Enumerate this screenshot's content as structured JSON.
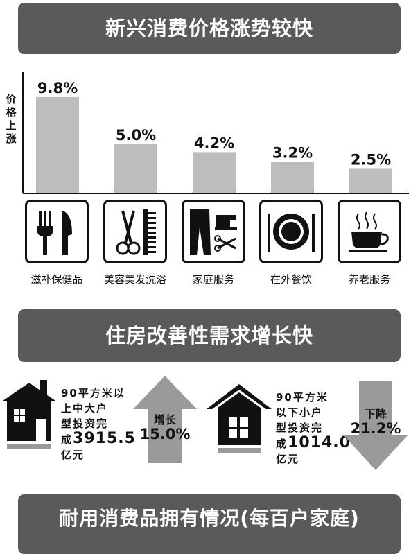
{
  "banners": {
    "price": "新兴消费价格涨势较快",
    "housing": "住房改善性需求增长快",
    "durables": "耐用消费品拥有情况(每百户家庭)"
  },
  "chart_data": {
    "type": "bar",
    "ylabel": "价格上涨",
    "categories": [
      "滋补保健品",
      "美容美发洗浴",
      "家庭服务",
      "在外餐饮",
      "养老服务"
    ],
    "values": [
      9.8,
      5.0,
      4.2,
      3.2,
      2.5
    ],
    "labels": [
      "9.8%",
      "5.0%",
      "4.2%",
      "3.2%",
      "2.5%"
    ],
    "ylim": [
      0,
      10
    ],
    "bar_color": "#bdbdbd",
    "icons": [
      "fork-knife-icon",
      "scissors-comb-icon",
      "clothes-sewing-icon",
      "plate-cutlery-icon",
      "coffee-cup-icon"
    ]
  },
  "housing": {
    "large": {
      "line1": "90平方米以",
      "line2": "上中大户",
      "line3": "型投资完",
      "line4_prefix": "成",
      "amount": "3915.5",
      "line5": "亿元",
      "direction": "增长",
      "percent": "15.0%",
      "icon": "house-large-icon"
    },
    "small": {
      "line1": "90平方米",
      "line2": "以下小户",
      "line3": "型投资完",
      "line4_prefix": "成",
      "amount": "1014.0",
      "line5": "亿元",
      "direction": "下降",
      "percent": "21.2%",
      "icon": "house-small-icon"
    }
  },
  "colors": {
    "banner": "#5a5a5a",
    "bar": "#bdbdbd",
    "arrow": "#9a9a9a"
  }
}
